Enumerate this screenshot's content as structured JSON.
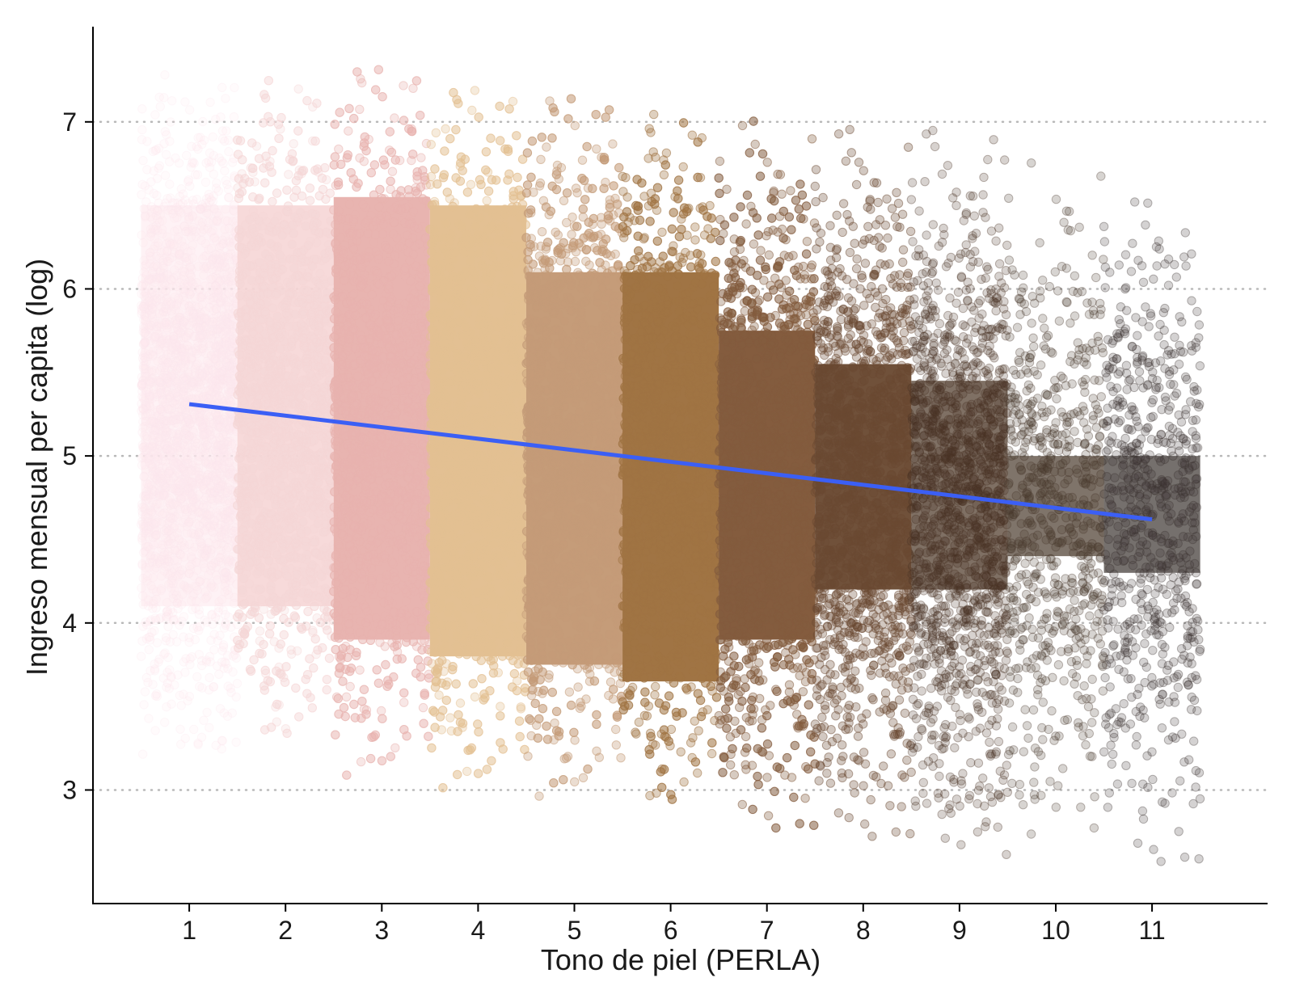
{
  "chart_data": {
    "type": "scatter",
    "title": "",
    "xlabel": "Tono de piel (PERLA)",
    "ylabel": "Ingreso mensual per capita (log)",
    "x_ticks": [
      "1",
      "2",
      "3",
      "4",
      "5",
      "6",
      "7",
      "8",
      "9",
      "10",
      "11"
    ],
    "y_ticks": [
      "3",
      "4",
      "5",
      "6",
      "7"
    ],
    "xlim": [
      0,
      12.2
    ],
    "ylim": [
      2.32,
      7.57
    ],
    "grid": "horizontal dotted",
    "legend": "none",
    "jitter_half_width": 0.5,
    "groups": [
      {
        "tone": 1,
        "color": "#fde8ee",
        "opacity": 0.18,
        "y_mean": 5.3,
        "y_range": [
          3.2,
          7.3
        ],
        "core_range": [
          4.1,
          6.5
        ],
        "density": "very high"
      },
      {
        "tone": 2,
        "color": "#f6d6d6",
        "opacity": 0.28,
        "y_mean": 5.25,
        "y_range": [
          3.3,
          7.3
        ],
        "core_range": [
          4.1,
          6.5
        ],
        "density": "very high"
      },
      {
        "tone": 3,
        "color": "#e8b4b0",
        "opacity": 0.32,
        "y_mean": 5.2,
        "y_range": [
          3.05,
          7.35
        ],
        "core_range": [
          3.9,
          6.55
        ],
        "density": "very high"
      },
      {
        "tone": 4,
        "color": "#e3c093",
        "opacity": 0.32,
        "y_mean": 5.1,
        "y_range": [
          3.0,
          7.25
        ],
        "core_range": [
          3.8,
          6.5
        ],
        "density": "very high"
      },
      {
        "tone": 5,
        "color": "#c59c79",
        "opacity": 0.34,
        "y_mean": 5.05,
        "y_range": [
          2.95,
          7.2
        ],
        "core_range": [
          3.75,
          6.1
        ],
        "density": "high"
      },
      {
        "tone": 6,
        "color": "#a07444",
        "opacity": 0.34,
        "y_mean": 4.95,
        "y_range": [
          2.9,
          7.1
        ],
        "core_range": [
          3.65,
          6.1
        ],
        "density": "high"
      },
      {
        "tone": 7,
        "color": "#845c3e",
        "opacity": 0.32,
        "y_mean": 4.9,
        "y_range": [
          2.75,
          7.05
        ],
        "core_range": [
          3.9,
          5.75
        ],
        "density": "high"
      },
      {
        "tone": 8,
        "color": "#6a4a32",
        "opacity": 0.3,
        "y_mean": 4.85,
        "y_range": [
          2.7,
          7.0
        ],
        "core_range": [
          4.2,
          5.55
        ],
        "density": "medium"
      },
      {
        "tone": 9,
        "color": "#4a3424",
        "opacity": 0.22,
        "y_mean": 4.75,
        "y_range": [
          2.6,
          6.95
        ],
        "core_range": [
          4.2,
          5.45
        ],
        "density": "medium"
      },
      {
        "tone": 10,
        "color": "#4a3a2c",
        "opacity": 0.22,
        "y_mean": 4.7,
        "y_range": [
          2.55,
          6.8
        ],
        "core_range": [
          4.4,
          5.0
        ],
        "density": "low"
      },
      {
        "tone": 11,
        "color": "#3b3430",
        "opacity": 0.22,
        "y_mean": 4.65,
        "y_range": [
          2.55,
          6.75
        ],
        "core_range": [
          4.3,
          5.0
        ],
        "density": "low"
      }
    ],
    "trend_line": {
      "color": "#3b5ff5",
      "x": [
        1,
        11
      ],
      "y": [
        5.31,
        4.62
      ]
    }
  }
}
